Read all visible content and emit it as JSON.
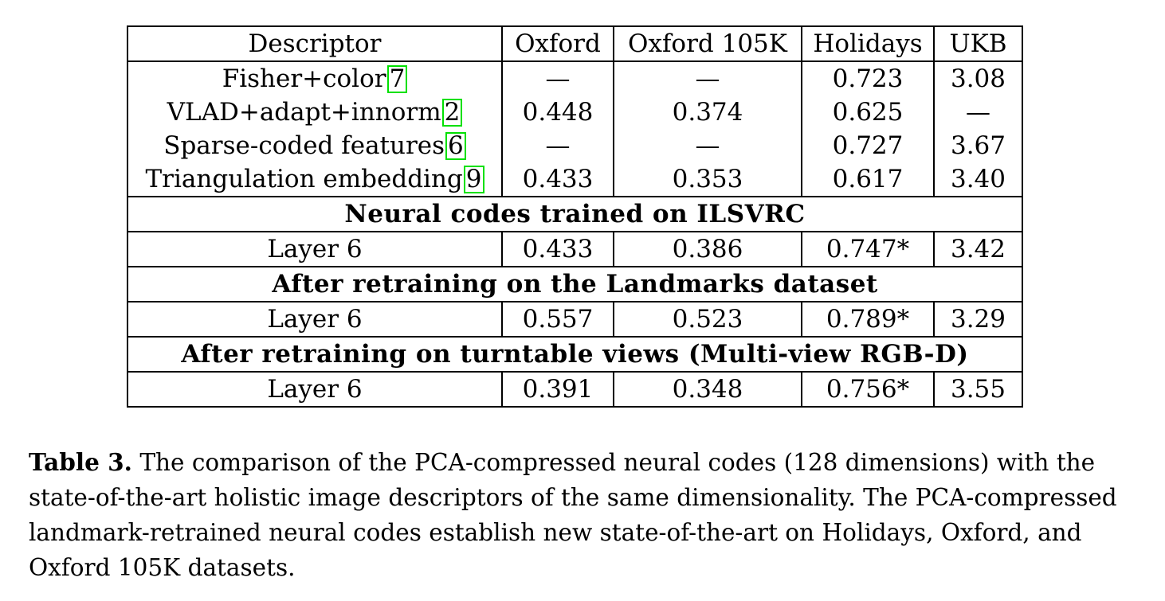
{
  "table": {
    "header": [
      "Descriptor",
      "Oxford",
      "Oxford 105K",
      "Holidays",
      "UKB"
    ],
    "baselines": [
      {
        "descriptor": "Fisher+color",
        "cite": "7",
        "oxford": "—",
        "oxford105k": "—",
        "holidays": "0.723",
        "ukb": "3.08"
      },
      {
        "descriptor": "VLAD+adapt+innorm",
        "cite": "2",
        "oxford": "0.448",
        "oxford105k": "0.374",
        "holidays": "0.625",
        "ukb": "—"
      },
      {
        "descriptor": "Sparse-coded features",
        "cite": "6",
        "oxford": "—",
        "oxford105k": "—",
        "holidays": "0.727",
        "ukb": "3.67"
      },
      {
        "descriptor": "Triangulation embedding",
        "cite": "9",
        "oxford": "0.433",
        "oxford105k": "0.353",
        "holidays": "0.617",
        "ukb": "3.40"
      }
    ],
    "sections": [
      {
        "title": "Neural codes trained on ILSVRC",
        "row": {
          "descriptor": "Layer 6",
          "oxford": "0.433",
          "oxford105k": "0.386",
          "holidays": "0.747*",
          "ukb": "3.42"
        }
      },
      {
        "title": "After retraining on the Landmarks dataset",
        "row": {
          "descriptor": "Layer 6",
          "oxford": "0.557",
          "oxford105k": "0.523",
          "holidays": "0.789*",
          "ukb": "3.29"
        }
      },
      {
        "title": "After retraining on turntable views (Multi-view RGB-D)",
        "row": {
          "descriptor": "Layer 6",
          "oxford": "0.391",
          "oxford105k": "0.348",
          "holidays": "0.756*",
          "ukb": "3.55"
        }
      }
    ]
  },
  "caption": {
    "label": "Table 3.",
    "text": "The comparison of the PCA-compressed neural codes (128 dimensions) with the state-of-the-art holistic image descriptors of the same dimensionality. The PCA-compressed landmark-retrained neural codes establish new state-of-the-art on Holidays, Oxford, and Oxford 105K datasets."
  },
  "colors": {
    "cite_box": "#00e000",
    "text": "#000000"
  }
}
